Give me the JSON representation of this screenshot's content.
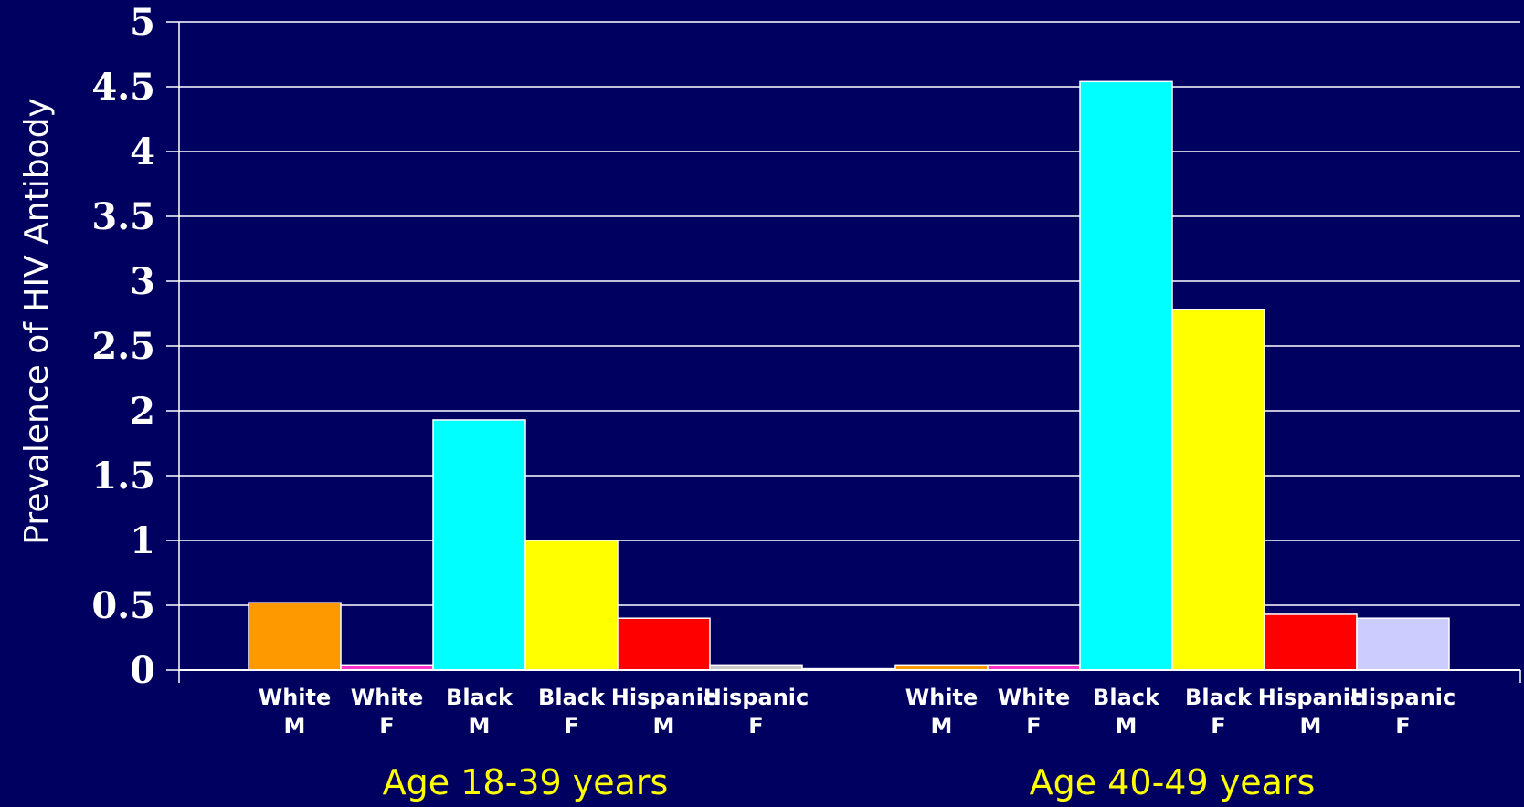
{
  "chart_data": {
    "type": "bar",
    "ylabel": "Prevalence of HIV Antibody",
    "ylim": [
      0,
      5
    ],
    "yticks": [
      "0",
      "0.5",
      "1",
      "1.5",
      "2",
      "2.5",
      "3",
      "3.5",
      "4",
      "4.5",
      "5"
    ],
    "grid": true,
    "groups": [
      {
        "label": "Age 18-39 years",
        "bars": [
          {
            "line1": "White",
            "line2": "M",
            "value": 0.52,
            "color": "#ff9900"
          },
          {
            "line1": "White",
            "line2": "F",
            "value": 0.04,
            "color": "#ff33cc"
          },
          {
            "line1": "Black",
            "line2": "M",
            "value": 1.93,
            "color": "#00ffff"
          },
          {
            "line1": "Black",
            "line2": "F",
            "value": 1.0,
            "color": "#ffff00"
          },
          {
            "line1": "Hispanic",
            "line2": "M",
            "value": 0.4,
            "color": "#ff0000"
          },
          {
            "line1": "Hispanic",
            "line2": "F",
            "value": 0.04,
            "color": "#c8c8c8"
          },
          {
            "line1": "",
            "line2": "",
            "value": 0.01,
            "color": "#dcdcff"
          }
        ]
      },
      {
        "label": "Age 40-49 years",
        "bars": [
          {
            "line1": "White",
            "line2": "M",
            "value": 0.04,
            "color": "#ff9900"
          },
          {
            "line1": "White",
            "line2": "F",
            "value": 0.04,
            "color": "#ff33cc"
          },
          {
            "line1": "Black",
            "line2": "M",
            "value": 4.54,
            "color": "#00ffff"
          },
          {
            "line1": "Black",
            "line2": "F",
            "value": 2.78,
            "color": "#ffff00"
          },
          {
            "line1": "Hispanic",
            "line2": "M",
            "value": 0.43,
            "color": "#ff0000"
          },
          {
            "line1": "Hispanic",
            "line2": "F",
            "value": 0.4,
            "color": "#ccccff"
          }
        ]
      }
    ]
  }
}
